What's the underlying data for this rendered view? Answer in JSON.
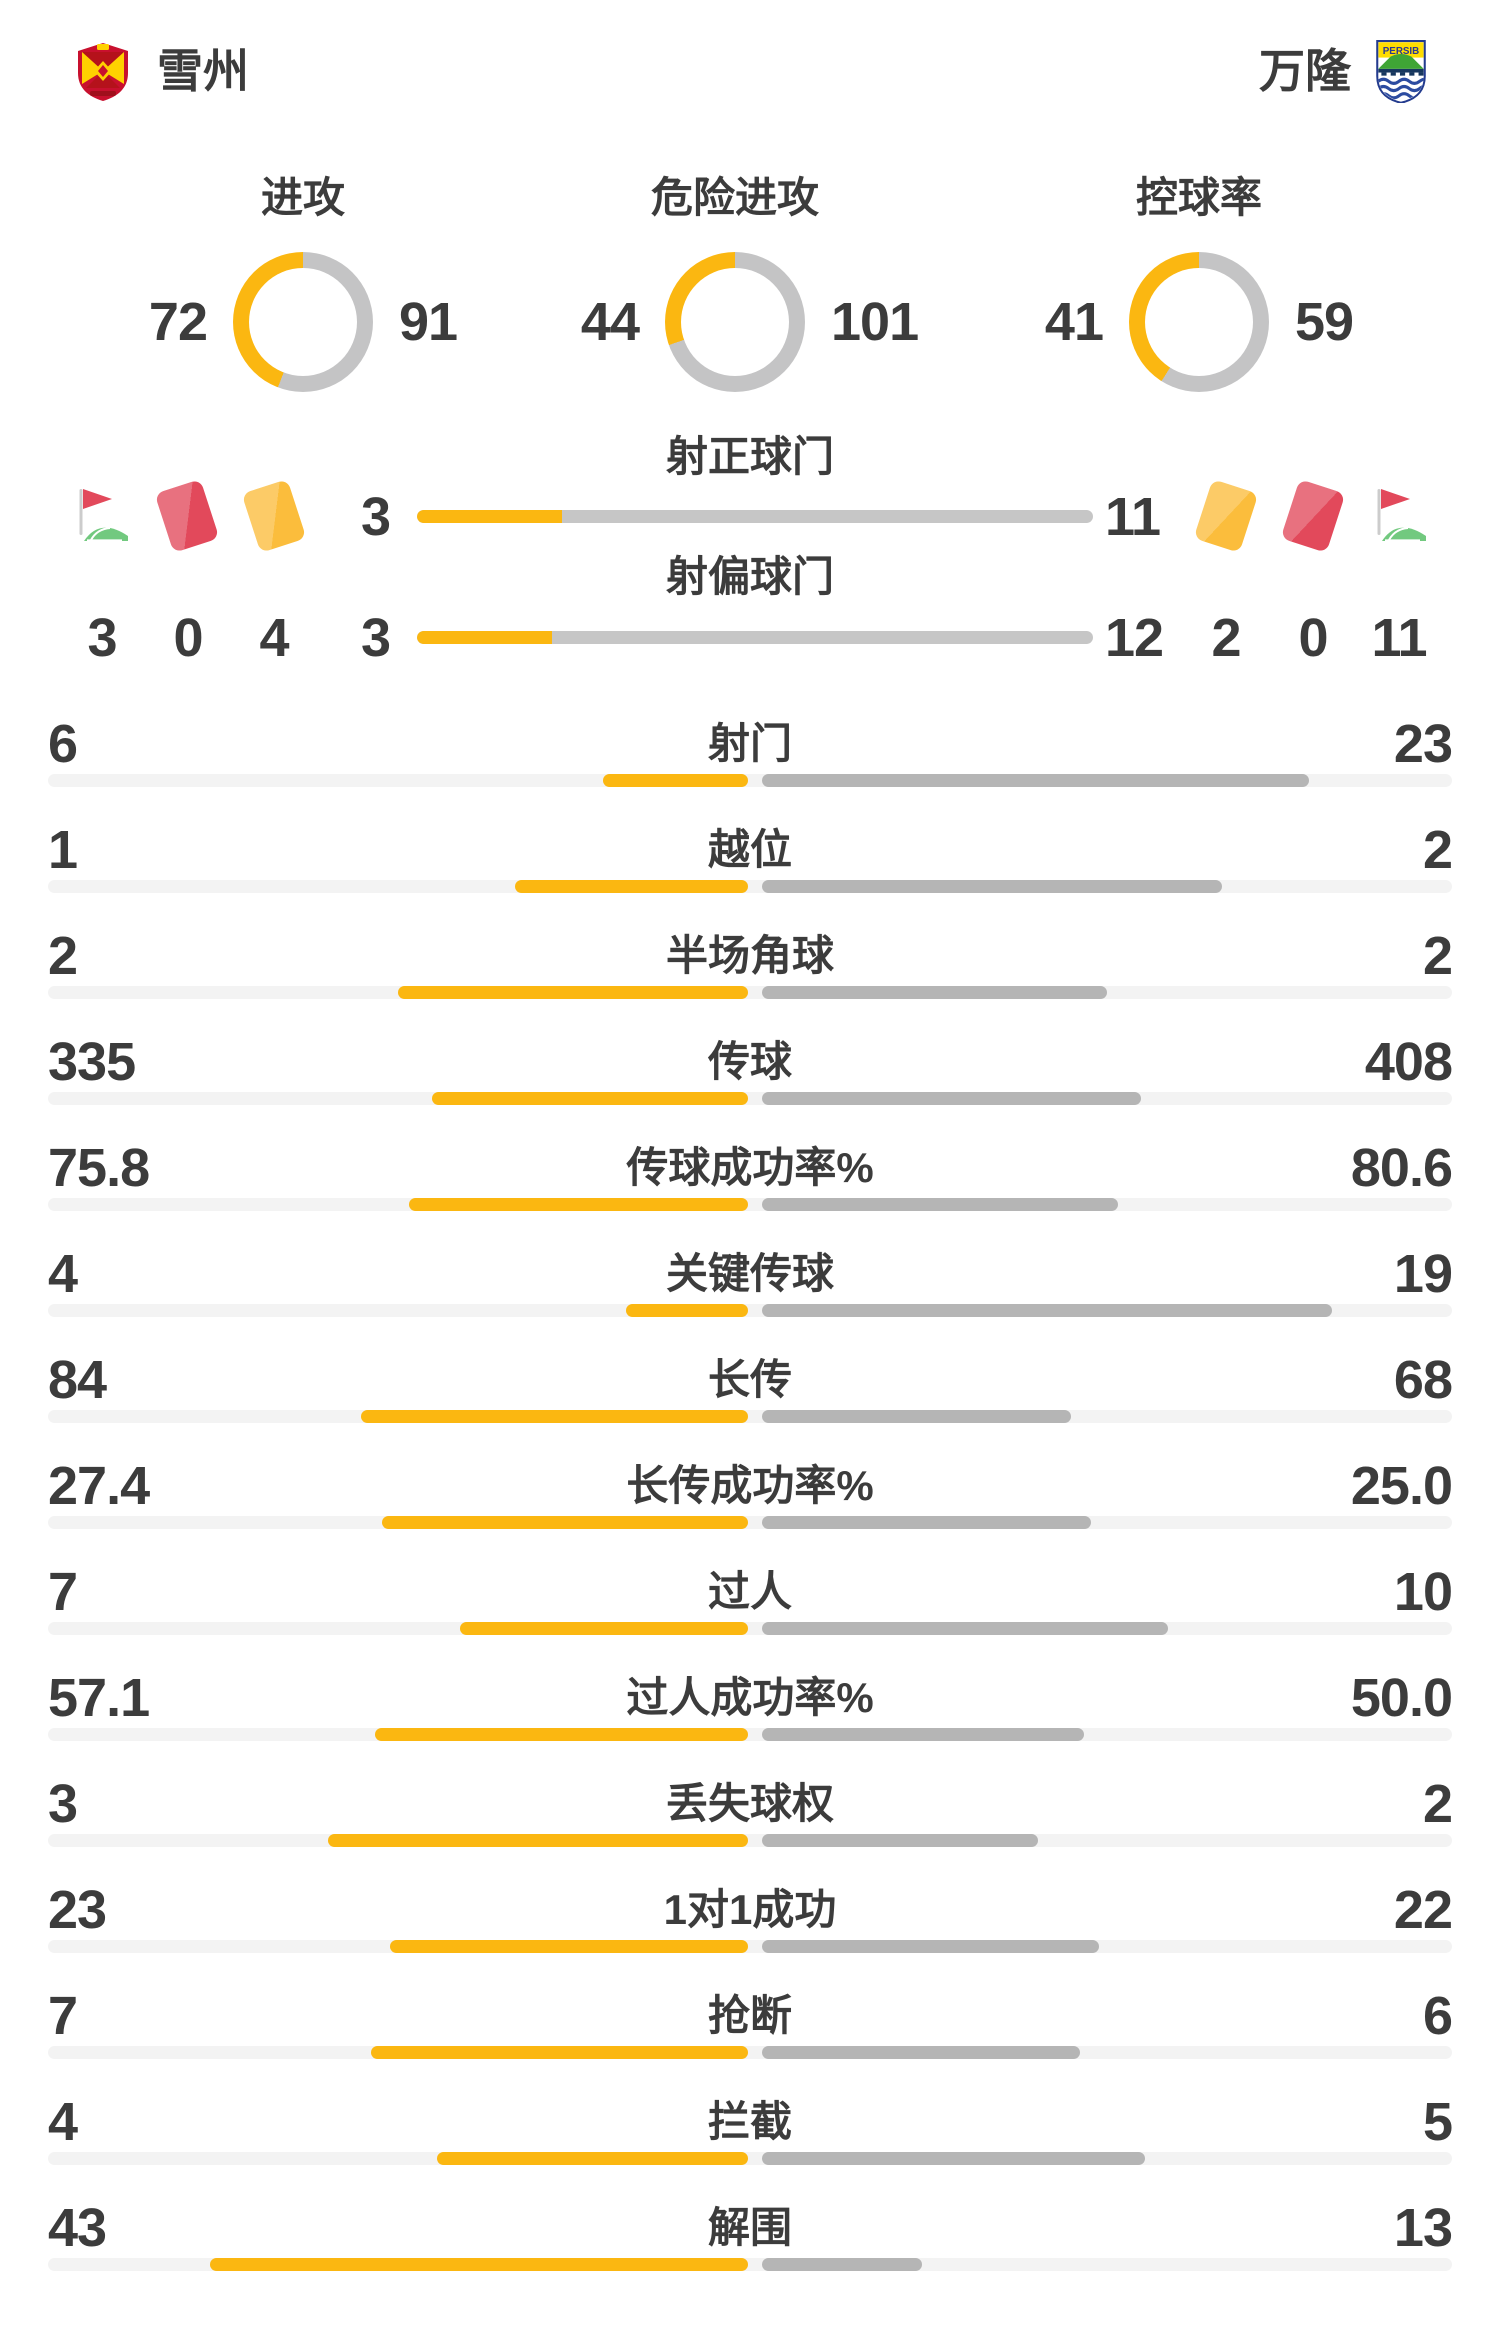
{
  "colors": {
    "accent": "#FBB711",
    "donut_gray": "#C4C4C5",
    "shot_gray": "#C6C6C6",
    "bar_gray": "#B5B5B5",
    "track_gray": "#F3F3F3",
    "text": "#3C3C3C",
    "card_red": "#E2495B",
    "card_yellow": "#FBBD3C",
    "flag_green": "#72C97F",
    "pole_gray": "#CCCCCC"
  },
  "header": {
    "home_team": {
      "name": "雪州"
    },
    "away_team": {
      "name": "万隆",
      "badge_label": "PERSIB"
    }
  },
  "icons": {
    "home_row": [
      "corner-flag-icon",
      "red-card-icon",
      "yellow-card-icon"
    ],
    "away_row": [
      "yellow-card-icon",
      "red-card-icon",
      "corner-flag-icon"
    ]
  },
  "chart_data": {
    "type": "table",
    "donuts": [
      {
        "type": "pie",
        "title": "进攻",
        "home": 72,
        "away": 91
      },
      {
        "type": "pie",
        "title": "危险进攻",
        "home": 44,
        "away": 101
      },
      {
        "type": "pie",
        "title": "控球率",
        "home": 41,
        "away": 59
      }
    ],
    "discipline": {
      "home": {
        "corners": "3",
        "red_cards": "0",
        "yellow_cards": "4"
      },
      "away": {
        "yellow_cards": "2",
        "red_cards": "0",
        "corners": "11"
      }
    },
    "shot_bars": [
      {
        "type": "bar",
        "title": "射正球门",
        "home": "3",
        "away": "11"
      },
      {
        "type": "bar",
        "title": "射偏球门",
        "home": "3",
        "away": "12"
      }
    ],
    "stat_rows": [
      {
        "label": "射门",
        "home": "6",
        "away": "23"
      },
      {
        "label": "越位",
        "home": "1",
        "away": "2"
      },
      {
        "label": "半场角球",
        "home": "2",
        "away": "2"
      },
      {
        "label": "传球",
        "home": "335",
        "away": "408"
      },
      {
        "label": "传球成功率%",
        "home": "75.8",
        "away": "80.6"
      },
      {
        "label": "关键传球",
        "home": "4",
        "away": "19"
      },
      {
        "label": "长传",
        "home": "84",
        "away": "68"
      },
      {
        "label": "长传成功率%",
        "home": "27.4",
        "away": "25.0"
      },
      {
        "label": "过人",
        "home": "7",
        "away": "10"
      },
      {
        "label": "过人成功率%",
        "home": "57.1",
        "away": "50.0"
      },
      {
        "label": "丢失球权",
        "home": "3",
        "away": "2"
      },
      {
        "label": "1对1成功",
        "home": "23",
        "away": "22"
      },
      {
        "label": "抢断",
        "home": "7",
        "away": "6"
      },
      {
        "label": "拦截",
        "home": "4",
        "away": "5"
      },
      {
        "label": "解围",
        "home": "43",
        "away": "13"
      }
    ]
  }
}
